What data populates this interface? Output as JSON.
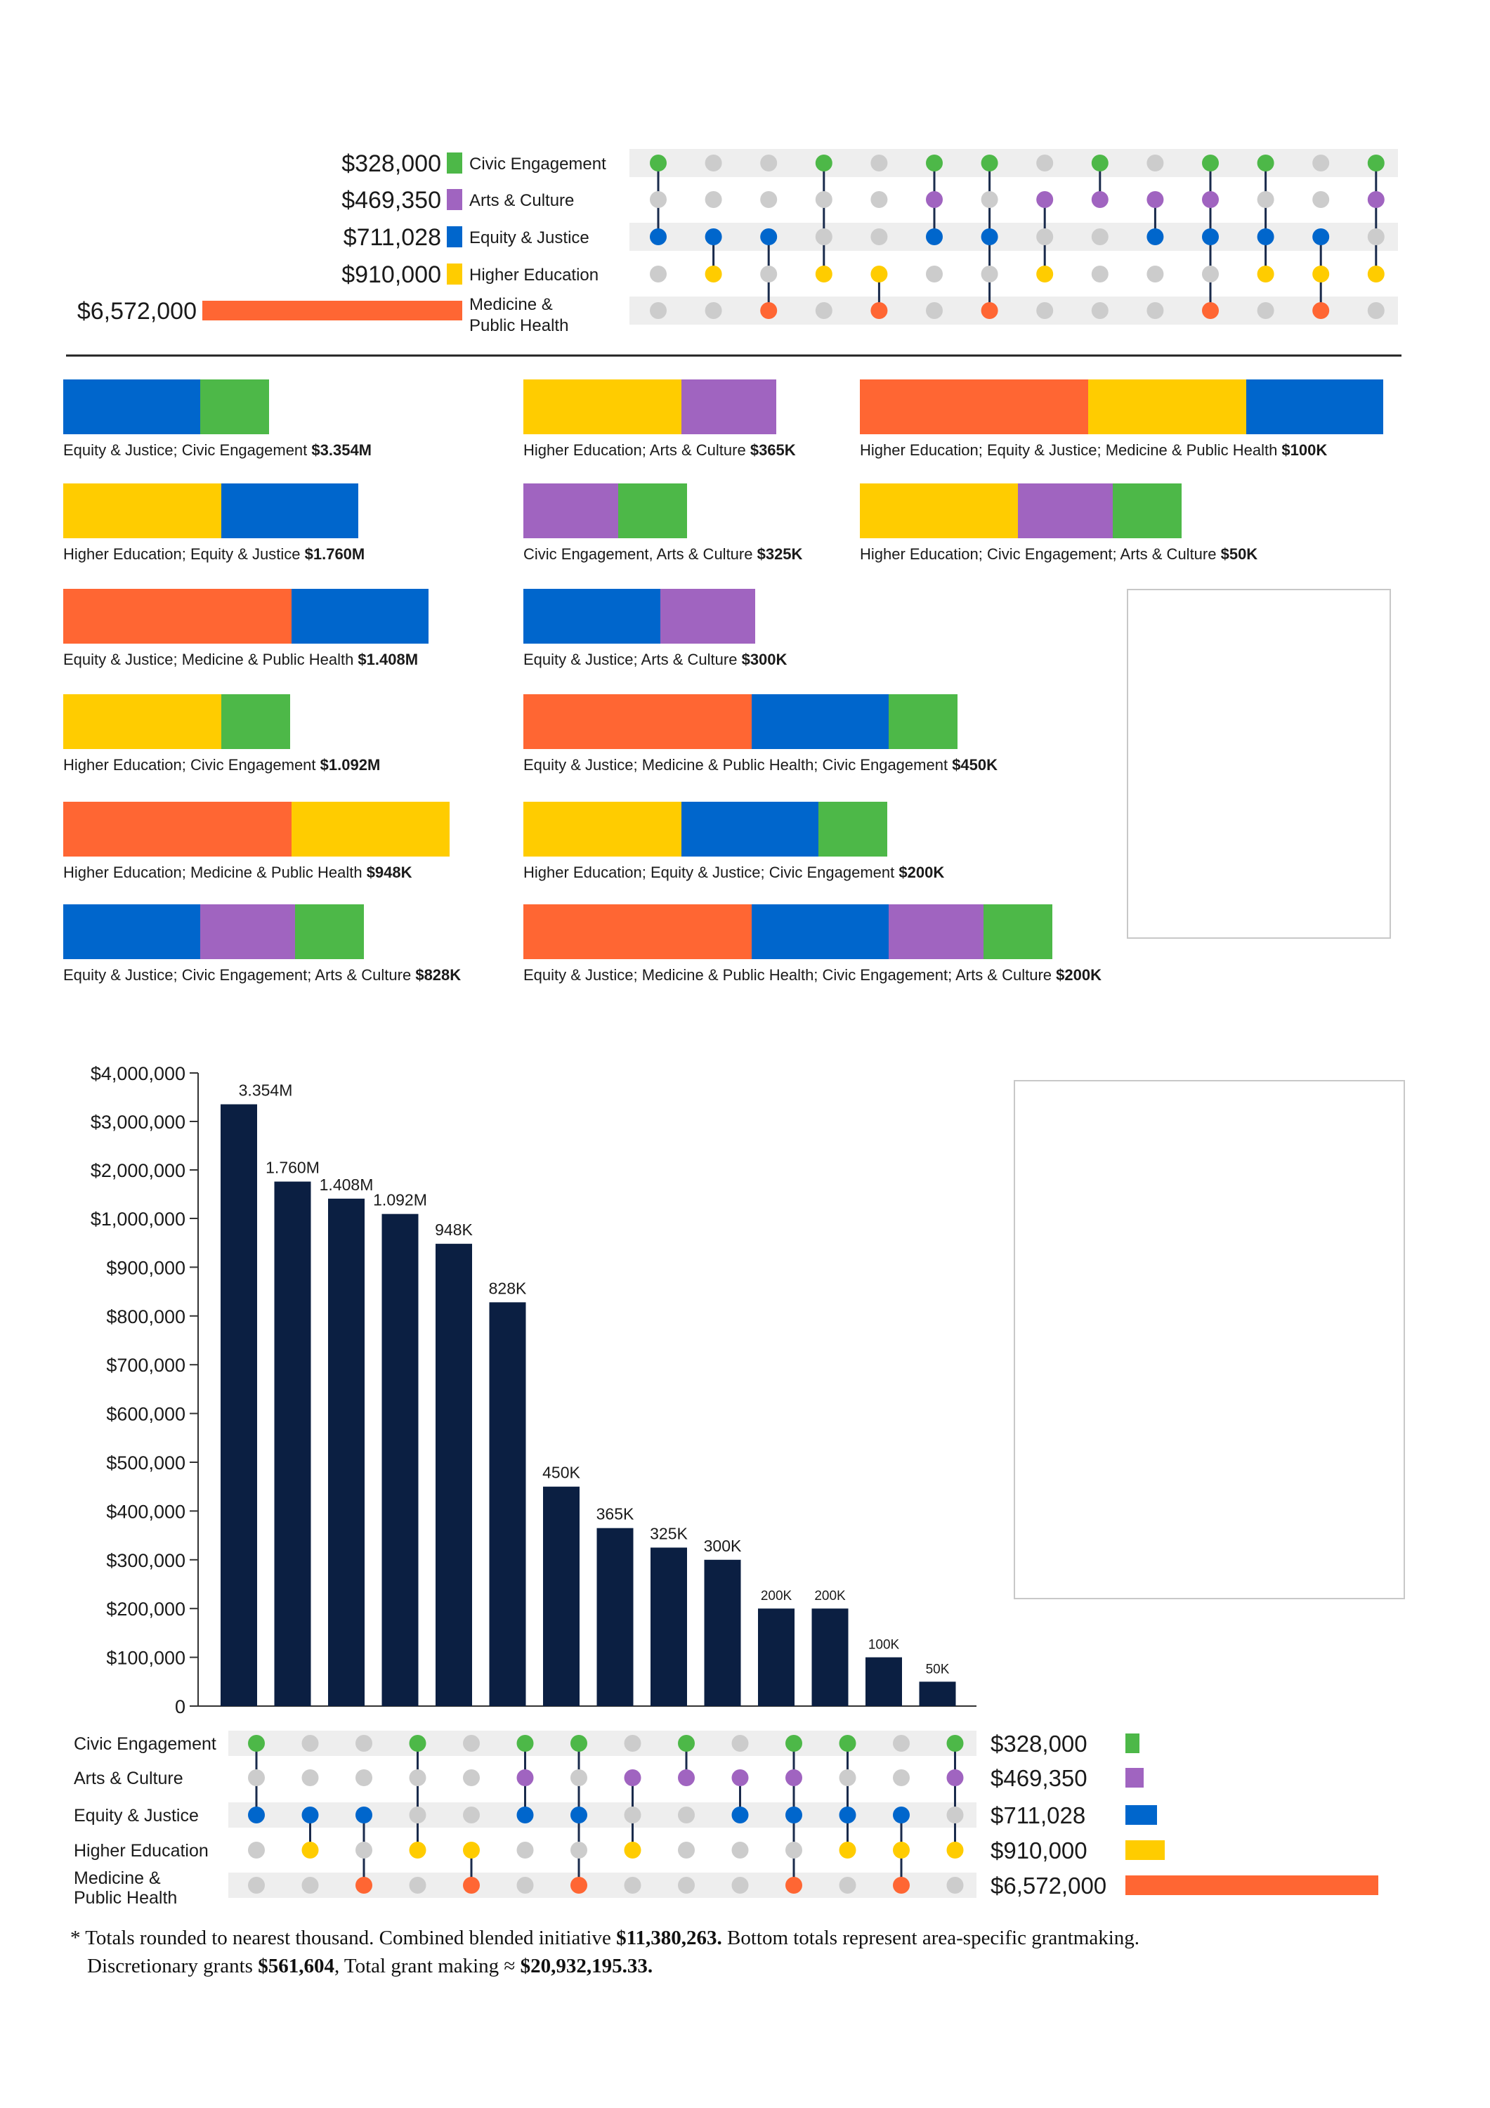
{
  "colors": {
    "civic": "#4db848",
    "arts": "#a064c0",
    "equity": "#0066cc",
    "higher": "#ffcc00",
    "medicine": "#ff6633",
    "dot_off": "#cccccc",
    "row_band": "#eeeeee",
    "bar": "#0b1f42",
    "connector": "#1a2b4c"
  },
  "areas": [
    {
      "key": "civic",
      "name": "Civic Engagement",
      "total": "$328,000",
      "value": 328000
    },
    {
      "key": "arts",
      "name": "Arts & Culture",
      "total": "$469,350",
      "value": 469350
    },
    {
      "key": "equity",
      "name": "Equity & Justice",
      "total": "$711,028",
      "value": 711028
    },
    {
      "key": "higher",
      "name": "Higher Education",
      "total": "$910,000",
      "value": 910000
    },
    {
      "key": "medicine",
      "name": "Medicine & Public Health",
      "name_lines": [
        "Medicine &",
        "Public Health"
      ],
      "total": "$6,572,000",
      "value": 6572000
    }
  ],
  "combinations": [
    {
      "members": [
        "civic",
        "equity"
      ]
    },
    {
      "members": [
        "equity",
        "higher"
      ]
    },
    {
      "members": [
        "equity",
        "medicine"
      ]
    },
    {
      "members": [
        "civic",
        "higher"
      ]
    },
    {
      "members": [
        "higher",
        "medicine"
      ]
    },
    {
      "members": [
        "civic",
        "arts",
        "equity"
      ]
    },
    {
      "members": [
        "civic",
        "equity",
        "medicine"
      ]
    },
    {
      "members": [
        "arts",
        "higher"
      ]
    },
    {
      "members": [
        "civic",
        "arts"
      ]
    },
    {
      "members": [
        "arts",
        "equity"
      ]
    },
    {
      "members": [
        "civic",
        "arts",
        "equity",
        "medicine"
      ]
    },
    {
      "members": [
        "civic",
        "equity",
        "higher"
      ]
    },
    {
      "members": [
        "equity",
        "higher",
        "medicine"
      ]
    },
    {
      "members": [
        "civic",
        "arts",
        "higher"
      ]
    }
  ],
  "combo_bars": [
    {
      "label": "Equity & Justice; Civic Engagement ",
      "amount": "$3.354M",
      "segments": [
        "equity",
        "civic"
      ]
    },
    {
      "label": "Higher Education; Equity & Justice ",
      "amount": "$1.760M",
      "segments": [
        "higher",
        "equity"
      ]
    },
    {
      "label": "Equity & Justice; Medicine & Public Health ",
      "amount": "$1.408M",
      "segments": [
        "medicine",
        "equity"
      ]
    },
    {
      "label": "Higher Education; Civic Engagement ",
      "amount": "$1.092M",
      "segments": [
        "higher",
        "civic"
      ]
    },
    {
      "label": "Higher Education; Medicine & Public Health ",
      "amount": "$948K",
      "segments": [
        "medicine",
        "higher"
      ]
    },
    {
      "label": "Equity & Justice; Civic Engagement; Arts & Culture ",
      "amount": "$828K",
      "segments": [
        "equity",
        "arts",
        "civic"
      ]
    },
    {
      "label": "Higher Education; Arts & Culture ",
      "amount": "$365K",
      "segments": [
        "higher",
        "arts"
      ]
    },
    {
      "label": "Civic Engagement, Arts & Culture ",
      "amount": "$325K",
      "segments": [
        "arts",
        "civic"
      ]
    },
    {
      "label": "Equity & Justice; Arts & Culture ",
      "amount": "$300K",
      "segments": [
        "equity",
        "arts"
      ]
    },
    {
      "label": "Equity & Justice; Medicine & Public Health; Civic Engagement ",
      "amount": "$450K",
      "segments": [
        "medicine",
        "equity",
        "civic"
      ]
    },
    {
      "label": "Higher Education; Equity & Justice; Civic Engagement ",
      "amount": "$200K",
      "segments": [
        "higher",
        "equity",
        "civic"
      ]
    },
    {
      "label": "Equity & Justice; Medicine & Public Health; Civic Engagement; Arts & Culture ",
      "amount": "$200K",
      "segments": [
        "medicine",
        "equity",
        "arts",
        "civic"
      ]
    },
    {
      "label": "Higher Education; Equity & Justice; Medicine & Public Health ",
      "amount": "$100K",
      "segments": [
        "medicine",
        "higher",
        "equity"
      ]
    },
    {
      "label": "Higher Education; Civic Engagement; Arts & Culture ",
      "amount": "$50K",
      "segments": [
        "higher",
        "arts",
        "civic"
      ]
    }
  ],
  "legend": [
    {
      "key": "arts",
      "icon": "arts-culture-icon",
      "name": "Arts & Culture",
      "total": "$469,350"
    },
    {
      "key": "civic",
      "icon": "civic-engagement-icon",
      "name": "Civic Engagement",
      "total": "$328,000"
    },
    {
      "key": "equity",
      "icon": "equity-justice-icon",
      "name": "Equity & Justice",
      "total": "$711,028"
    },
    {
      "key": "higher",
      "icon": "higher-education-icon",
      "name": "Higher Education",
      "total": "$910,000"
    },
    {
      "key": "medicine",
      "icon": "medicine-public-health-icon",
      "name": "Medicine and Public Health",
      "total": "$6,572,000"
    }
  ],
  "chart_data": {
    "type": "bar",
    "categories": [
      "Equity & Justice; Civic Engagement",
      "Higher Education; Equity & Justice",
      "Equity & Justice; Medicine & Public Health",
      "Higher Education; Civic Engagement",
      "Higher Education; Medicine & Public Health",
      "Equity & Justice; Civic Engagement; Arts & Culture",
      "Equity & Justice; Medicine & Public Health; Civic Engagement",
      "Higher Education; Arts & Culture",
      "Civic Engagement, Arts & Culture",
      "Equity & Justice; Arts & Culture",
      "Equity & Justice; Medicine & Public Health; Civic Engagement; Arts & Culture",
      "Higher Education; Equity & Justice; Civic Engagement",
      "Higher Education; Equity & Justice; Medicine & Public Health",
      "Higher Education; Civic Engagement; Arts & Culture"
    ],
    "values": [
      3354000,
      1760000,
      1408000,
      1092000,
      948000,
      828000,
      450000,
      365000,
      325000,
      300000,
      200000,
      200000,
      100000,
      50000
    ],
    "data_labels": [
      "3.354M",
      "1.760M",
      "1.408M",
      "1.092M",
      "948K",
      "828K",
      "450K",
      "365K",
      "325K",
      "300K",
      "200K",
      "200K",
      "100K",
      "50K"
    ],
    "y_ticks": [
      0,
      100000,
      200000,
      300000,
      400000,
      500000,
      600000,
      700000,
      800000,
      900000,
      1000000,
      2000000,
      3000000,
      4000000
    ],
    "y_tick_labels": [
      "0",
      "$100,000",
      "$200,000",
      "$300,000",
      "$400,000",
      "$500,000",
      "$600,000",
      "$700,000",
      "$800,000",
      "$900,000",
      "$1,000,000",
      "$2,000,000",
      "$3,000,000",
      "$4,000,000"
    ],
    "y_scale": "piecewise: linear to 1,000,000 then compressed to 4,000,000",
    "ylim": [
      0,
      4000000
    ],
    "grid": false,
    "legend_position": "right"
  },
  "footnote": {
    "line1_a": "* Totals rounded to nearest thousand. Combined blended initiative ",
    "line1_b": "$11,380,263.",
    "line1_c": " Bottom totals represent area-specific grantmaking.",
    "line2_a": "Discretionary grants ",
    "line2_b": "$561,604",
    "line2_c": ", Total grant making ≈ ",
    "line2_d": "$20,932,195.33."
  }
}
